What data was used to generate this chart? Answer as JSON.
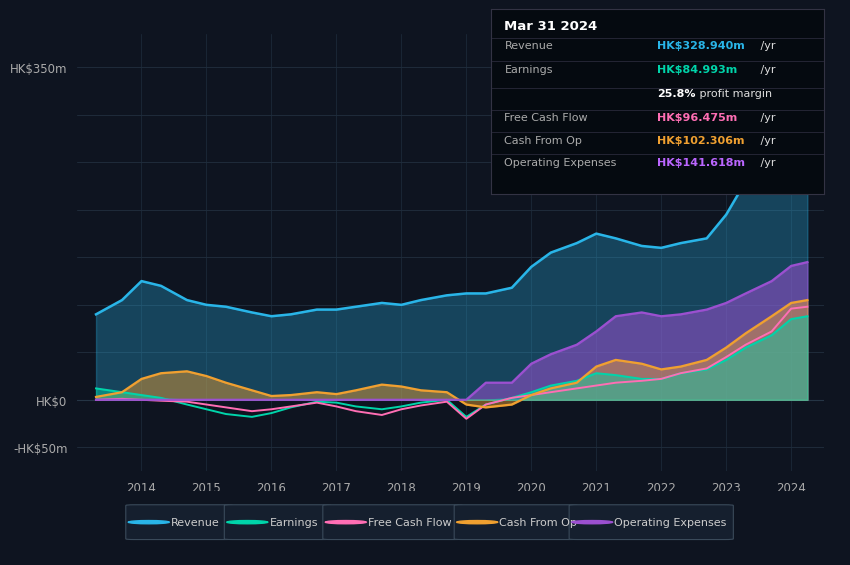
{
  "bg_color": "#0e1420",
  "plot_bg_color": "#0e1420",
  "grid_color": "#1e2d3d",
  "years": [
    2013.3,
    2013.7,
    2014.0,
    2014.3,
    2014.7,
    2015.0,
    2015.3,
    2015.7,
    2016.0,
    2016.3,
    2016.7,
    2017.0,
    2017.3,
    2017.7,
    2018.0,
    2018.3,
    2018.7,
    2019.0,
    2019.3,
    2019.7,
    2020.0,
    2020.3,
    2020.7,
    2021.0,
    2021.3,
    2021.7,
    2022.0,
    2022.3,
    2022.7,
    2023.0,
    2023.3,
    2023.7,
    2024.0,
    2024.25
  ],
  "revenue": [
    90,
    105,
    125,
    120,
    105,
    100,
    98,
    92,
    88,
    90,
    95,
    95,
    98,
    102,
    100,
    105,
    110,
    112,
    112,
    118,
    140,
    155,
    165,
    175,
    170,
    162,
    160,
    165,
    170,
    195,
    230,
    270,
    329,
    335
  ],
  "earnings": [
    12,
    8,
    5,
    2,
    -5,
    -10,
    -15,
    -18,
    -14,
    -8,
    -2,
    -3,
    -7,
    -10,
    -7,
    -3,
    0,
    -18,
    -5,
    2,
    8,
    15,
    20,
    28,
    26,
    22,
    22,
    28,
    32,
    42,
    55,
    68,
    85,
    88
  ],
  "free_cash_flow": [
    0,
    1,
    0,
    -1,
    -2,
    -5,
    -8,
    -12,
    -10,
    -7,
    -3,
    -7,
    -12,
    -16,
    -10,
    -6,
    -2,
    -20,
    -5,
    2,
    5,
    8,
    12,
    15,
    18,
    20,
    22,
    28,
    33,
    45,
    58,
    72,
    96,
    98
  ],
  "cash_from_op": [
    3,
    8,
    22,
    28,
    30,
    25,
    18,
    10,
    4,
    5,
    8,
    6,
    10,
    16,
    14,
    10,
    8,
    -5,
    -8,
    -5,
    5,
    12,
    18,
    35,
    42,
    38,
    32,
    35,
    42,
    55,
    70,
    88,
    102,
    105
  ],
  "operating_expenses": [
    0,
    0,
    0,
    0,
    0,
    0,
    0,
    0,
    0,
    0,
    0,
    0,
    0,
    0,
    0,
    0,
    0,
    0,
    18,
    18,
    38,
    48,
    58,
    72,
    88,
    92,
    88,
    90,
    95,
    102,
    112,
    125,
    141,
    145
  ],
  "revenue_color": "#29b5e8",
  "earnings_color": "#00d4aa",
  "free_cash_flow_color": "#ff6eb4",
  "cash_from_op_color": "#f0a030",
  "operating_expenses_color": "#9b50d0",
  "ylim": [
    -75,
    385
  ],
  "ytick_vals": [
    -50,
    0,
    350
  ],
  "ytick_labels": [
    "-HK$50m",
    "HK$0",
    "HK$350m"
  ],
  "xtick_vals": [
    2014,
    2015,
    2016,
    2017,
    2018,
    2019,
    2020,
    2021,
    2022,
    2023,
    2024
  ],
  "xmin": 2013.0,
  "xmax": 2024.5,
  "tooltip_date": "Mar 31 2024",
  "tooltip_rows": [
    {
      "label": "Revenue",
      "value": "HK$328.940m /yr",
      "color": "#29b5e8"
    },
    {
      "label": "Earnings",
      "value": "HK$84.993m /yr",
      "color": "#00d4aa"
    },
    {
      "label": "",
      "value": "25.8% profit margin",
      "color": "#ffffff"
    },
    {
      "label": "Free Cash Flow",
      "value": "HK$96.475m /yr",
      "color": "#ff6eb4"
    },
    {
      "label": "Cash From Op",
      "value": "HK$102.306m /yr",
      "color": "#f0a030"
    },
    {
      "label": "Operating Expenses",
      "value": "HK$141.618m /yr",
      "color": "#bb66ff"
    }
  ],
  "legend_items": [
    {
      "label": "Revenue",
      "color": "#29b5e8"
    },
    {
      "label": "Earnings",
      "color": "#00d4aa"
    },
    {
      "label": "Free Cash Flow",
      "color": "#ff6eb4"
    },
    {
      "label": "Cash From Op",
      "color": "#f0a030"
    },
    {
      "label": "Operating Expenses",
      "color": "#9b50d0"
    }
  ]
}
